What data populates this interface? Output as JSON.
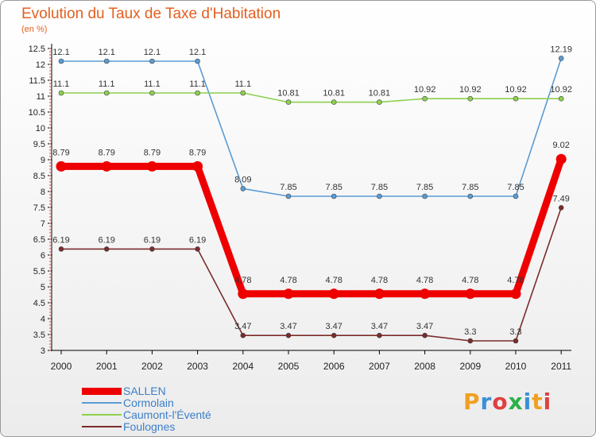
{
  "header": {
    "title": "Evolution du Taux de Taxe d'Habitation",
    "unit": "(en %)"
  },
  "logo": {
    "text": "Proxiti",
    "colors": [
      "#f0a020",
      "#3a8fd8",
      "#e04040",
      "#2bb04a",
      "#3a8fd8",
      "#f0a020",
      "#e04040"
    ]
  },
  "chart_data": {
    "type": "line",
    "x": [
      "2000",
      "2001",
      "2002",
      "2003",
      "2004",
      "2005",
      "2006",
      "2007",
      "2008",
      "2009",
      "2010",
      "2011"
    ],
    "ylim": [
      3,
      12.5
    ],
    "yticks": [
      "3",
      "3.5",
      "4",
      "4.5",
      "5",
      "5.5",
      "6",
      "6.5",
      "7",
      "7.5",
      "8",
      "8.5",
      "9",
      "9.5",
      "10",
      "10.5",
      "11",
      "11.5",
      "12",
      "12.5"
    ],
    "grid": false,
    "legend_position": "bottom-left",
    "series": [
      {
        "name": "SALLEN",
        "color": "#ee0000",
        "values": [
          8.79,
          8.79,
          8.79,
          8.79,
          4.78,
          4.78,
          4.78,
          4.78,
          4.78,
          4.78,
          4.78,
          9.02
        ],
        "labels": [
          "8.79",
          "8.79",
          "8.79",
          "8.79",
          "4.78",
          "4.78",
          "4.78",
          "4.78",
          "4.78",
          "4.78",
          "4.78",
          "9.02"
        ]
      },
      {
        "name": "Cormolain",
        "color": "#5b9bd5",
        "values": [
          12.1,
          12.1,
          12.1,
          12.1,
          8.09,
          7.85,
          7.85,
          7.85,
          7.85,
          7.85,
          7.85,
          12.19
        ],
        "labels": [
          "12.1",
          "12.1",
          "12.1",
          "12.1",
          "8.09",
          "7.85",
          "7.85",
          "7.85",
          "7.85",
          "7.85",
          "7.85",
          "12.19"
        ]
      },
      {
        "name": "Caumont-l'Éventé",
        "color": "#8dd04f",
        "values": [
          11.1,
          11.1,
          11.1,
          11.1,
          11.1,
          10.81,
          10.81,
          10.81,
          10.92,
          10.92,
          10.92,
          10.92
        ],
        "labels": [
          "11.1",
          "11.1",
          "11.1",
          "11.1",
          "11.1",
          "10.81",
          "10.81",
          "10.81",
          "10.92",
          "10.92",
          "10.92",
          "10.92"
        ]
      },
      {
        "name": "Foulognes",
        "color": "#7b2b2b",
        "values": [
          6.19,
          6.19,
          6.19,
          6.19,
          3.47,
          3.47,
          3.47,
          3.47,
          3.47,
          3.3,
          3.3,
          7.49
        ],
        "labels": [
          "6.19",
          "6.19",
          "6.19",
          "6.19",
          "3.47",
          "3.47",
          "3.47",
          "3.47",
          "3.47",
          "3.3",
          "3.3",
          "7.49"
        ]
      }
    ]
  }
}
